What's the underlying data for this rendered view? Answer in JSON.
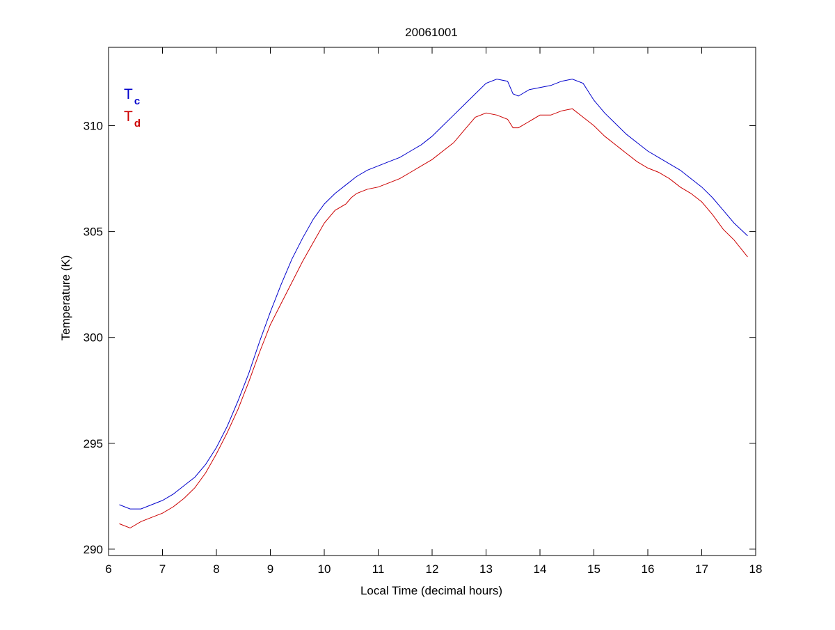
{
  "chart_data": {
    "type": "line",
    "title": "20061001",
    "xlabel": "Local Time (decimal hours)",
    "ylabel": "Temperature (K)",
    "xlim": [
      6,
      18
    ],
    "ylim": [
      289.7,
      313.7
    ],
    "xticks": [
      6,
      7,
      8,
      9,
      10,
      11,
      12,
      13,
      14,
      15,
      16,
      17,
      18
    ],
    "yticks": [
      290,
      295,
      300,
      305,
      310
    ],
    "grid": false,
    "legend_position": "top-left",
    "series": [
      {
        "name": "T",
        "subscript": "c",
        "color": "#0000cc",
        "x": [
          6.2,
          6.4,
          6.6,
          6.8,
          7.0,
          7.2,
          7.4,
          7.6,
          7.8,
          8.0,
          8.2,
          8.4,
          8.6,
          8.8,
          9.0,
          9.2,
          9.4,
          9.6,
          9.8,
          10.0,
          10.2,
          10.4,
          10.6,
          10.8,
          11.0,
          11.2,
          11.4,
          11.6,
          11.8,
          12.0,
          12.2,
          12.4,
          12.6,
          12.8,
          13.0,
          13.2,
          13.4,
          13.5,
          13.6,
          13.8,
          14.0,
          14.2,
          14.4,
          14.6,
          14.8,
          15.0,
          15.2,
          15.4,
          15.6,
          15.8,
          16.0,
          16.2,
          16.4,
          16.6,
          16.8,
          17.0,
          17.2,
          17.4,
          17.6,
          17.85
        ],
        "values": [
          292.1,
          291.9,
          291.9,
          292.1,
          292.3,
          292.6,
          293.0,
          293.4,
          294.0,
          294.8,
          295.8,
          297.0,
          298.3,
          299.8,
          301.2,
          302.5,
          303.7,
          304.7,
          305.6,
          306.3,
          306.8,
          307.2,
          307.6,
          307.9,
          308.1,
          308.3,
          308.5,
          308.8,
          309.1,
          309.5,
          310.0,
          310.5,
          311.0,
          311.5,
          312.0,
          312.2,
          312.1,
          311.5,
          311.4,
          311.7,
          311.8,
          311.9,
          312.1,
          312.2,
          312.0,
          311.2,
          310.6,
          310.1,
          309.6,
          309.2,
          308.8,
          308.5,
          308.2,
          307.9,
          307.5,
          307.1,
          306.6,
          306.0,
          305.4,
          304.8
        ]
      },
      {
        "name": "T",
        "subscript": "d",
        "color": "#cc0000",
        "x": [
          6.2,
          6.4,
          6.6,
          6.8,
          7.0,
          7.2,
          7.4,
          7.6,
          7.8,
          8.0,
          8.2,
          8.4,
          8.6,
          8.8,
          9.0,
          9.2,
          9.4,
          9.6,
          9.8,
          10.0,
          10.2,
          10.4,
          10.5,
          10.6,
          10.8,
          11.0,
          11.2,
          11.4,
          11.6,
          11.8,
          12.0,
          12.2,
          12.4,
          12.6,
          12.8,
          13.0,
          13.2,
          13.4,
          13.5,
          13.6,
          13.8,
          14.0,
          14.2,
          14.4,
          14.6,
          14.8,
          15.0,
          15.2,
          15.4,
          15.6,
          15.8,
          16.0,
          16.2,
          16.4,
          16.6,
          16.8,
          17.0,
          17.2,
          17.4,
          17.6,
          17.85
        ],
        "values": [
          291.2,
          291.0,
          291.3,
          291.5,
          291.7,
          292.0,
          292.4,
          292.9,
          293.6,
          294.5,
          295.5,
          296.6,
          297.9,
          299.3,
          300.6,
          301.6,
          302.6,
          303.6,
          304.5,
          305.4,
          306.0,
          306.3,
          306.6,
          306.8,
          307.0,
          307.1,
          307.3,
          307.5,
          307.8,
          308.1,
          308.4,
          308.8,
          309.2,
          309.8,
          310.4,
          310.6,
          310.5,
          310.3,
          309.9,
          309.9,
          310.2,
          310.5,
          310.5,
          310.7,
          310.8,
          310.4,
          310.0,
          309.5,
          309.1,
          308.7,
          308.3,
          308.0,
          307.8,
          307.5,
          307.1,
          306.8,
          306.4,
          305.8,
          305.1,
          304.6,
          303.8
        ]
      }
    ]
  }
}
